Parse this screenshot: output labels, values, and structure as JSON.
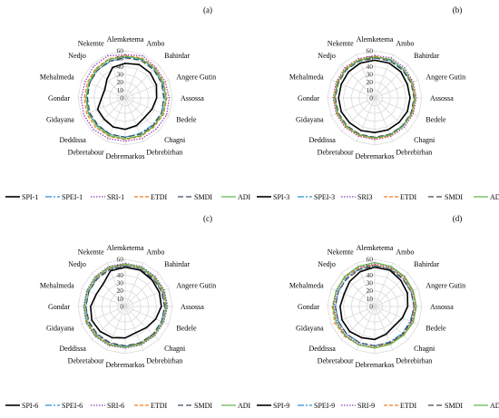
{
  "chart_data": [
    {
      "type": "radar",
      "panel_label": "(a)",
      "categories": [
        "Alemketema",
        "Ambo",
        "Bahirdar",
        "Angere Gutin",
        "Assossa",
        "Bedele",
        "Chagni",
        "Debrebirhan",
        "Debremarkos",
        "Debretabour",
        "Deddissa",
        "Gidayana",
        "Gondar",
        "Mehalmeda",
        "Nedjo",
        "Nekemte"
      ],
      "radial_ticks": [
        0,
        10,
        20,
        30,
        40,
        50,
        60
      ],
      "rlim": [
        0,
        60
      ],
      "legend_position": "bottom",
      "series": [
        {
          "name": "SPI-1",
          "color": "#000000",
          "dash": "",
          "values": [
            44,
            46,
            45,
            43,
            40,
            37,
            35,
            38,
            40,
            40,
            38,
            38,
            30,
            28,
            33,
            42
          ]
        },
        {
          "name": "SPEI-1",
          "color": "#2b8fce",
          "dash": "7 2 2 2",
          "values": [
            52,
            53,
            52,
            51,
            50,
            50,
            49,
            49,
            50,
            50,
            50,
            50,
            49,
            49,
            50,
            50
          ]
        },
        {
          "name": "SRI-1",
          "color": "#8e3fb3",
          "dash": "1.5 1.5",
          "values": [
            55,
            58,
            55,
            55,
            56,
            57,
            56,
            56,
            55,
            56,
            57,
            57,
            56,
            55,
            57,
            58
          ]
        },
        {
          "name": "ETDI",
          "color": "#f07a1e",
          "dash": "4 2",
          "values": [
            54,
            55,
            54,
            53,
            53,
            53,
            52,
            53,
            53,
            53,
            53,
            53,
            52,
            52,
            53,
            54
          ]
        },
        {
          "name": "SMDI",
          "color": "#3b4a5a",
          "dash": "6 3",
          "values": [
            51,
            52,
            51,
            50,
            49,
            50,
            50,
            50,
            50,
            50,
            49,
            49,
            48,
            49,
            50,
            51
          ]
        },
        {
          "name": "ADI",
          "color": "#5cb548",
          "dash": "",
          "values": [
            53,
            54,
            53,
            52,
            52,
            52,
            51,
            52,
            52,
            52,
            51,
            51,
            50,
            50,
            52,
            53
          ]
        }
      ]
    },
    {
      "type": "radar",
      "panel_label": "(b)",
      "categories": [
        "Alemketema",
        "Ambo",
        "Bahirdar",
        "Angere Gutin",
        "Assossa",
        "Bedele",
        "Chagni",
        "Debrebirhan",
        "Debremarkos",
        "Debretabour",
        "Deddissa",
        "Gidayana",
        "Gondar",
        "Mehalmeda",
        "Nedjo",
        "Nekemte"
      ],
      "radial_ticks": [
        0,
        10,
        20,
        30,
        40,
        50,
        60
      ],
      "rlim": [
        0,
        60
      ],
      "legend_position": "bottom",
      "series": [
        {
          "name": "SPI-3",
          "color": "#000000",
          "dash": "",
          "values": [
            48,
            48,
            47,
            45,
            45,
            45,
            44,
            44,
            44,
            45,
            45,
            46,
            46,
            46,
            47,
            48
          ]
        },
        {
          "name": "SPEI-3",
          "color": "#2b8fce",
          "dash": "7 2 2 2",
          "values": [
            52,
            52,
            51,
            51,
            51,
            51,
            50,
            51,
            51,
            51,
            51,
            51,
            51,
            51,
            52,
            52
          ]
        },
        {
          "name": "SRI3",
          "color": "#8e3fb3",
          "dash": "1.5 1.5",
          "values": [
            54,
            55,
            54,
            53,
            53,
            53,
            53,
            53,
            53,
            53,
            53,
            53,
            53,
            53,
            54,
            54
          ]
        },
        {
          "name": "ETDI",
          "color": "#f07a1e",
          "dash": "4 2",
          "values": [
            53,
            53,
            52,
            52,
            52,
            52,
            51,
            52,
            52,
            52,
            52,
            52,
            52,
            52,
            53,
            53
          ]
        },
        {
          "name": "SMDI",
          "color": "#3b4a5a",
          "dash": "6 3",
          "values": [
            51,
            51,
            50,
            50,
            50,
            50,
            50,
            50,
            50,
            50,
            50,
            50,
            50,
            50,
            51,
            51
          ]
        },
        {
          "name": "ADI",
          "color": "#5cb548",
          "dash": "",
          "values": [
            52,
            53,
            52,
            51,
            51,
            51,
            51,
            51,
            51,
            51,
            51,
            51,
            51,
            51,
            52,
            52
          ]
        }
      ]
    },
    {
      "type": "radar",
      "panel_label": "(c)",
      "categories": [
        "Alemketema",
        "Ambo",
        "Bahirdar",
        "Angere Gutin",
        "Assossa",
        "Bedele",
        "Chagni",
        "Debrebirhan",
        "Debremarkos",
        "Debretabour",
        "Deddissa",
        "Gidayana",
        "Gondar",
        "Mehalmeda",
        "Nedjo",
        "Nekemte"
      ],
      "radial_ticks": [
        0,
        10,
        20,
        30,
        40,
        50,
        60
      ],
      "rlim": [
        0,
        60
      ],
      "legend_position": "bottom",
      "series": [
        {
          "name": "SPI-6",
          "color": "#000000",
          "dash": "",
          "values": [
            50,
            50,
            48,
            47,
            46,
            42,
            38,
            36,
            40,
            43,
            45,
            46,
            44,
            40,
            40,
            49
          ]
        },
        {
          "name": "SPEI-6",
          "color": "#2b8fce",
          "dash": "7 2 2 2",
          "values": [
            52,
            52,
            51,
            51,
            51,
            50,
            50,
            50,
            51,
            51,
            51,
            51,
            50,
            50,
            51,
            52
          ]
        },
        {
          "name": "SRI-6",
          "color": "#8e3fb3",
          "dash": "1.5 1.5",
          "values": [
            55,
            55,
            54,
            54,
            54,
            53,
            53,
            53,
            53,
            54,
            54,
            54,
            53,
            53,
            54,
            55
          ]
        },
        {
          "name": "ETDI",
          "color": "#f07a1e",
          "dash": "4 2",
          "values": [
            53,
            53,
            52,
            52,
            52,
            52,
            51,
            51,
            52,
            52,
            52,
            52,
            52,
            52,
            52,
            53
          ]
        },
        {
          "name": "SMDI",
          "color": "#3b4a5a",
          "dash": "6 3",
          "values": [
            51,
            51,
            50,
            50,
            50,
            50,
            50,
            50,
            50,
            50,
            50,
            50,
            50,
            50,
            50,
            51
          ]
        },
        {
          "name": "ADI",
          "color": "#5cb548",
          "dash": "",
          "values": [
            54,
            54,
            53,
            53,
            53,
            52,
            52,
            52,
            52,
            53,
            53,
            53,
            52,
            52,
            53,
            54
          ]
        }
      ]
    },
    {
      "type": "radar",
      "panel_label": "(d)",
      "categories": [
        "Alemketema",
        "Ambo",
        "Bahirdar",
        "Angere Gutin",
        "Assossa",
        "Bedele",
        "Chagni",
        "Debrebirhan",
        "Debremarkos",
        "Debretabour",
        "Deddissa",
        "Gidayana",
        "Gondar",
        "Mehalmeda",
        "Nedjo",
        "Nekemte"
      ],
      "radial_ticks": [
        0,
        10,
        20,
        30,
        40,
        50,
        60
      ],
      "rlim": [
        0,
        60
      ],
      "legend_position": "bottom",
      "series": [
        {
          "name": "SPI-9",
          "color": "#000000",
          "dash": "",
          "values": [
            50,
            50,
            47,
            45,
            42,
            38,
            35,
            38,
            42,
            43,
            45,
            45,
            44,
            42,
            45,
            48
          ]
        },
        {
          "name": "SPEI-9",
          "color": "#2b8fce",
          "dash": "7 2 2 2",
          "values": [
            52,
            52,
            51,
            50,
            50,
            49,
            49,
            49,
            50,
            50,
            50,
            50,
            50,
            50,
            51,
            52
          ]
        },
        {
          "name": "SRI-9",
          "color": "#8e3fb3",
          "dash": "1.5 1.5",
          "values": [
            54,
            54,
            53,
            52,
            52,
            51,
            51,
            51,
            52,
            52,
            52,
            52,
            52,
            52,
            53,
            54
          ]
        },
        {
          "name": "ETDI",
          "color": "#f07a1e",
          "dash": "4 2",
          "values": [
            53,
            53,
            52,
            52,
            52,
            52,
            51,
            51,
            52,
            53,
            54,
            55,
            54,
            53,
            53,
            53
          ]
        },
        {
          "name": "SMDI",
          "color": "#3b4a5a",
          "dash": "6 3",
          "values": [
            51,
            51,
            50,
            50,
            50,
            50,
            50,
            50,
            50,
            50,
            50,
            50,
            50,
            50,
            50,
            51
          ]
        },
        {
          "name": "ADI",
          "color": "#5cb548",
          "dash": "",
          "values": [
            56,
            55,
            54,
            53,
            53,
            53,
            52,
            52,
            53,
            53,
            53,
            53,
            53,
            53,
            54,
            55
          ]
        }
      ]
    }
  ]
}
